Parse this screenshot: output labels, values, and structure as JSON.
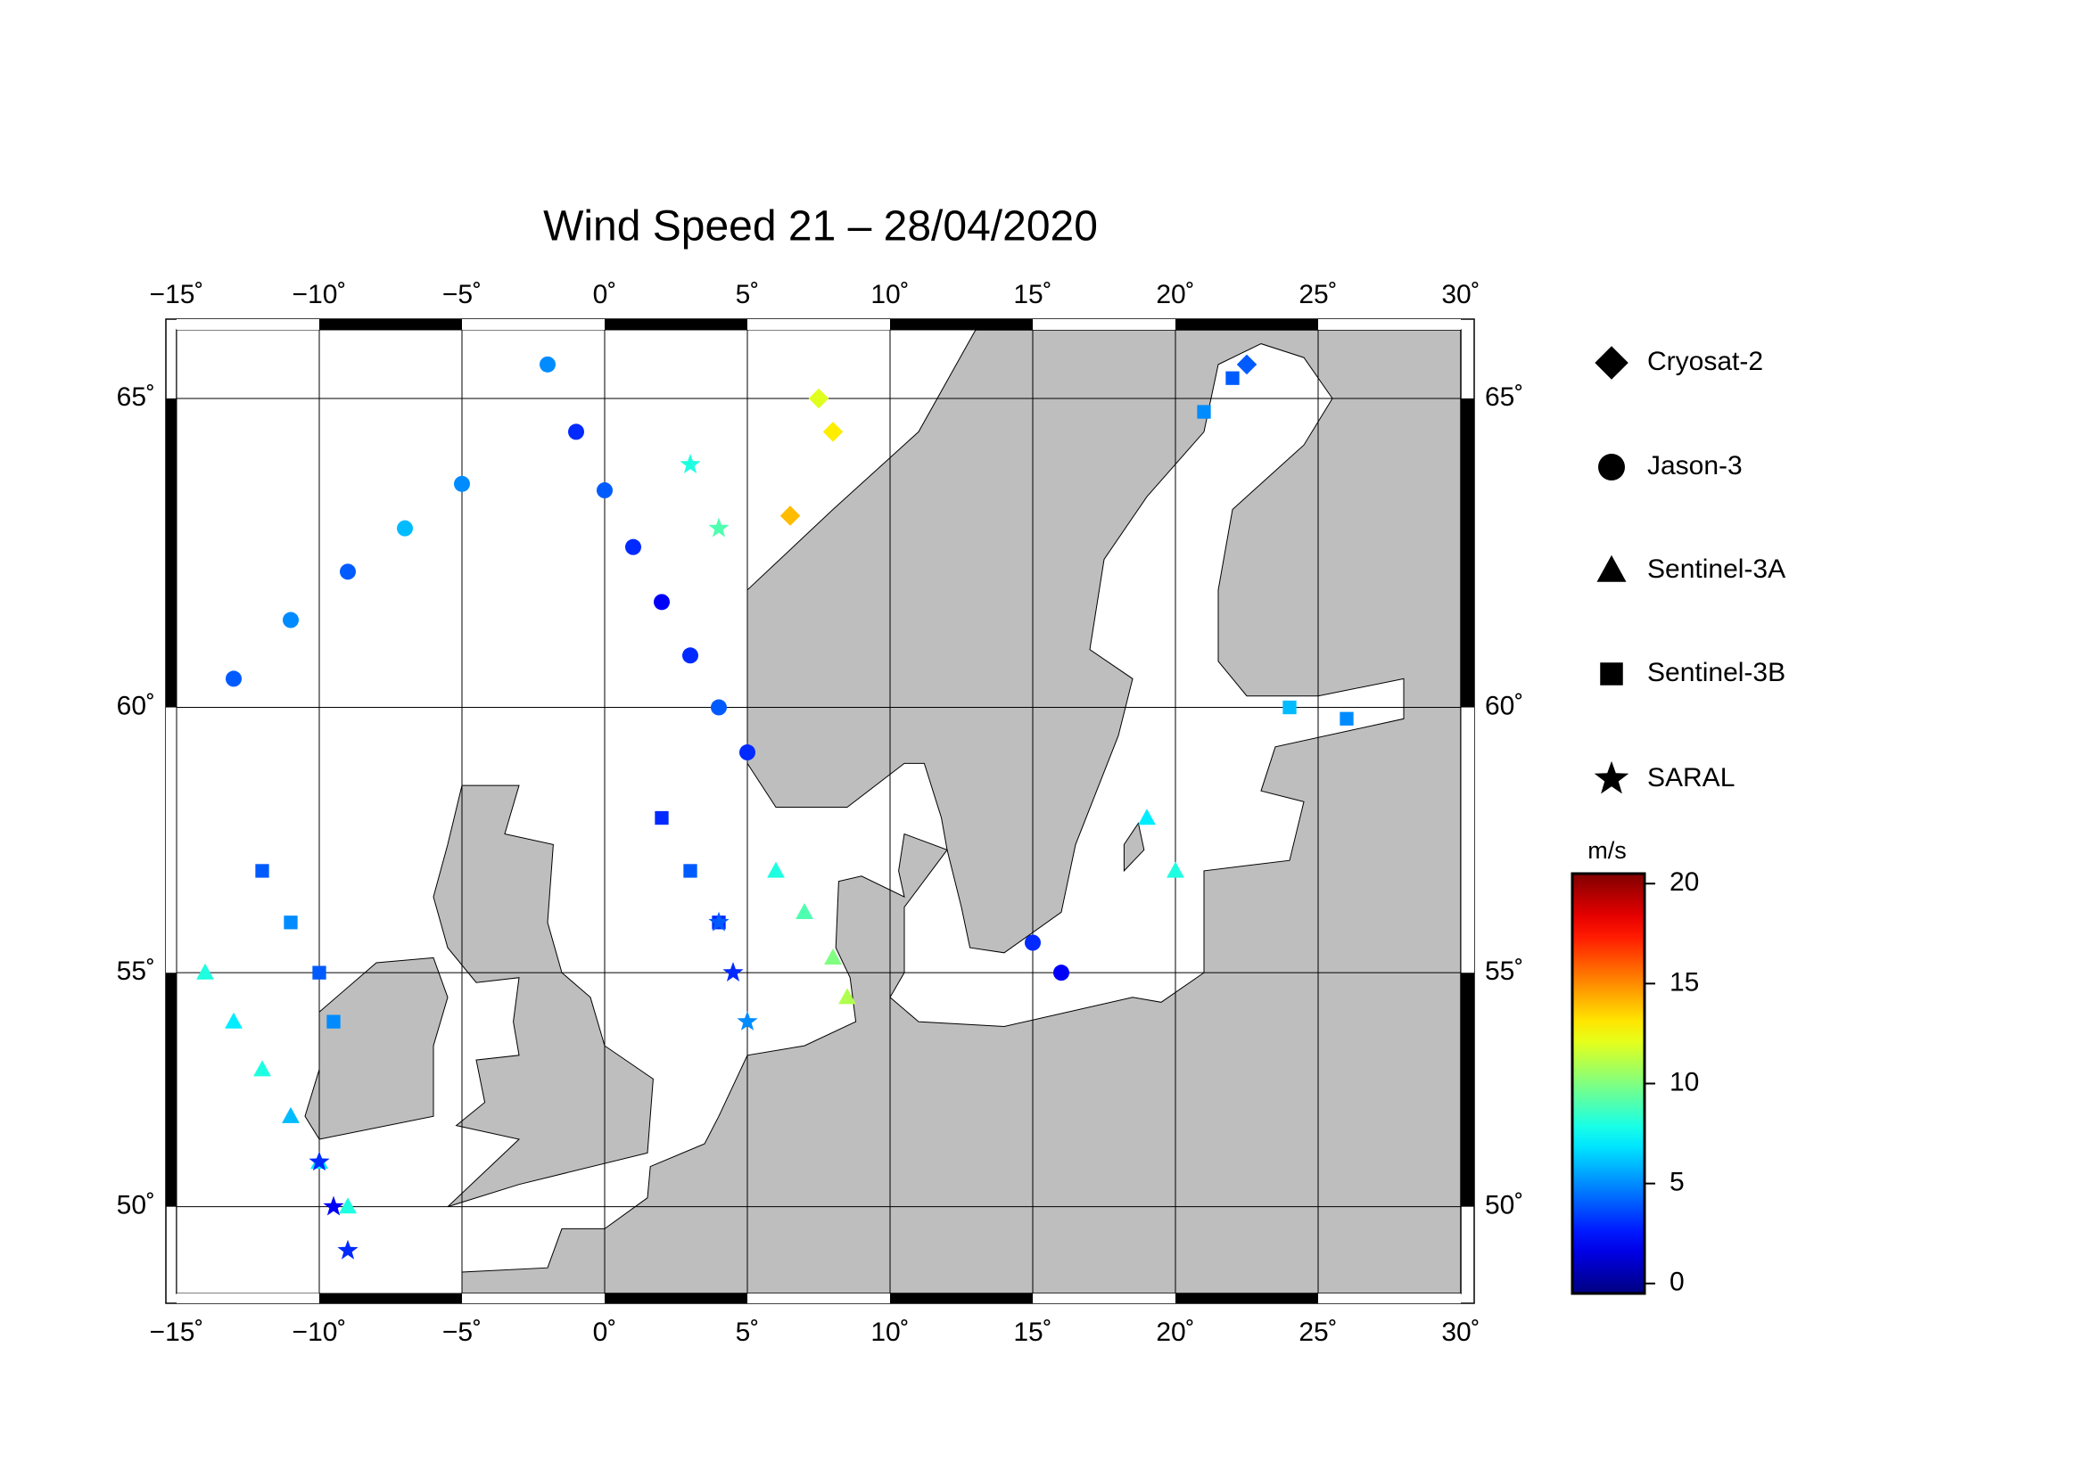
{
  "chart_data": {
    "type": "scatter",
    "title": "Wind Speed 21 – 28/04/2020",
    "xlim": [
      -15,
      30
    ],
    "ylim": [
      48,
      66
    ],
    "xticks": [
      {
        "value": -15,
        "label": "−15˚"
      },
      {
        "value": -10,
        "label": "−10˚"
      },
      {
        "value": -5,
        "label": "−5˚"
      },
      {
        "value": 0,
        "label": "0˚"
      },
      {
        "value": 5,
        "label": "5˚"
      },
      {
        "value": 10,
        "label": "10˚"
      },
      {
        "value": 15,
        "label": "15˚"
      },
      {
        "value": 20,
        "label": "20˚"
      },
      {
        "value": 25,
        "label": "25˚"
      },
      {
        "value": 30,
        "label": "30˚"
      }
    ],
    "yticks": [
      {
        "value": 50,
        "label": "50˚"
      },
      {
        "value": 55,
        "label": "55˚"
      },
      {
        "value": 60,
        "label": "60˚"
      },
      {
        "value": 65,
        "label": "65˚"
      }
    ],
    "grid": true,
    "colorbar": {
      "label": "m/s",
      "clim": [
        -0.5,
        20.5
      ],
      "ticks": [
        0,
        5,
        10,
        15,
        20
      ],
      "colormap": "jet"
    },
    "series": [
      {
        "name": "Cryosat-2",
        "marker": "diamond",
        "x": [
          8,
          7.5,
          6.5,
          22.5
        ],
        "y": [
          64.5,
          65,
          63.2,
          65.5
        ],
        "values": [
          13,
          12,
          14,
          4
        ]
      },
      {
        "name": "Jason-3",
        "marker": "circle",
        "x": [
          -2,
          -1,
          0,
          1,
          2,
          3,
          4,
          5,
          -13,
          -11,
          -9,
          -7,
          -5,
          15,
          16
        ],
        "y": [
          65.5,
          64.5,
          63.6,
          62.7,
          61.8,
          60.9,
          60,
          59.2,
          60.5,
          61.5,
          62.3,
          63,
          63.7,
          55.6,
          55
        ],
        "values": [
          5,
          3,
          4,
          3,
          2,
          3,
          4,
          3,
          4,
          5,
          4,
          6,
          5,
          3,
          2
        ]
      },
      {
        "name": "Sentinel-3A",
        "marker": "triangle",
        "x": [
          -14,
          -13,
          -12,
          -11,
          -10,
          -9,
          6,
          7,
          8,
          8.5,
          19,
          20
        ],
        "y": [
          55,
          54,
          53,
          52,
          51,
          50,
          57,
          56.2,
          55.3,
          54.5,
          58,
          57
        ],
        "values": [
          8,
          7,
          8,
          6,
          7,
          8,
          8,
          9,
          10,
          11,
          7,
          8
        ]
      },
      {
        "name": "Sentinel-3B",
        "marker": "square",
        "x": [
          -12,
          -11,
          -10,
          -9.5,
          2,
          3,
          4,
          21,
          22,
          24,
          26
        ],
        "y": [
          57,
          56,
          55,
          54,
          58,
          57,
          56,
          64.8,
          65.3,
          60,
          59.8
        ],
        "values": [
          4,
          5,
          4,
          5,
          3,
          4,
          3,
          5,
          4,
          6,
          5
        ]
      },
      {
        "name": "SARAL",
        "marker": "star",
        "x": [
          -9,
          -9.5,
          -10,
          4,
          4.5,
          5,
          3,
          4
        ],
        "y": [
          49,
          50,
          51,
          56,
          55,
          54,
          64,
          63
        ],
        "values": [
          3,
          2,
          3,
          4,
          3,
          5,
          8,
          9
        ]
      }
    ]
  }
}
